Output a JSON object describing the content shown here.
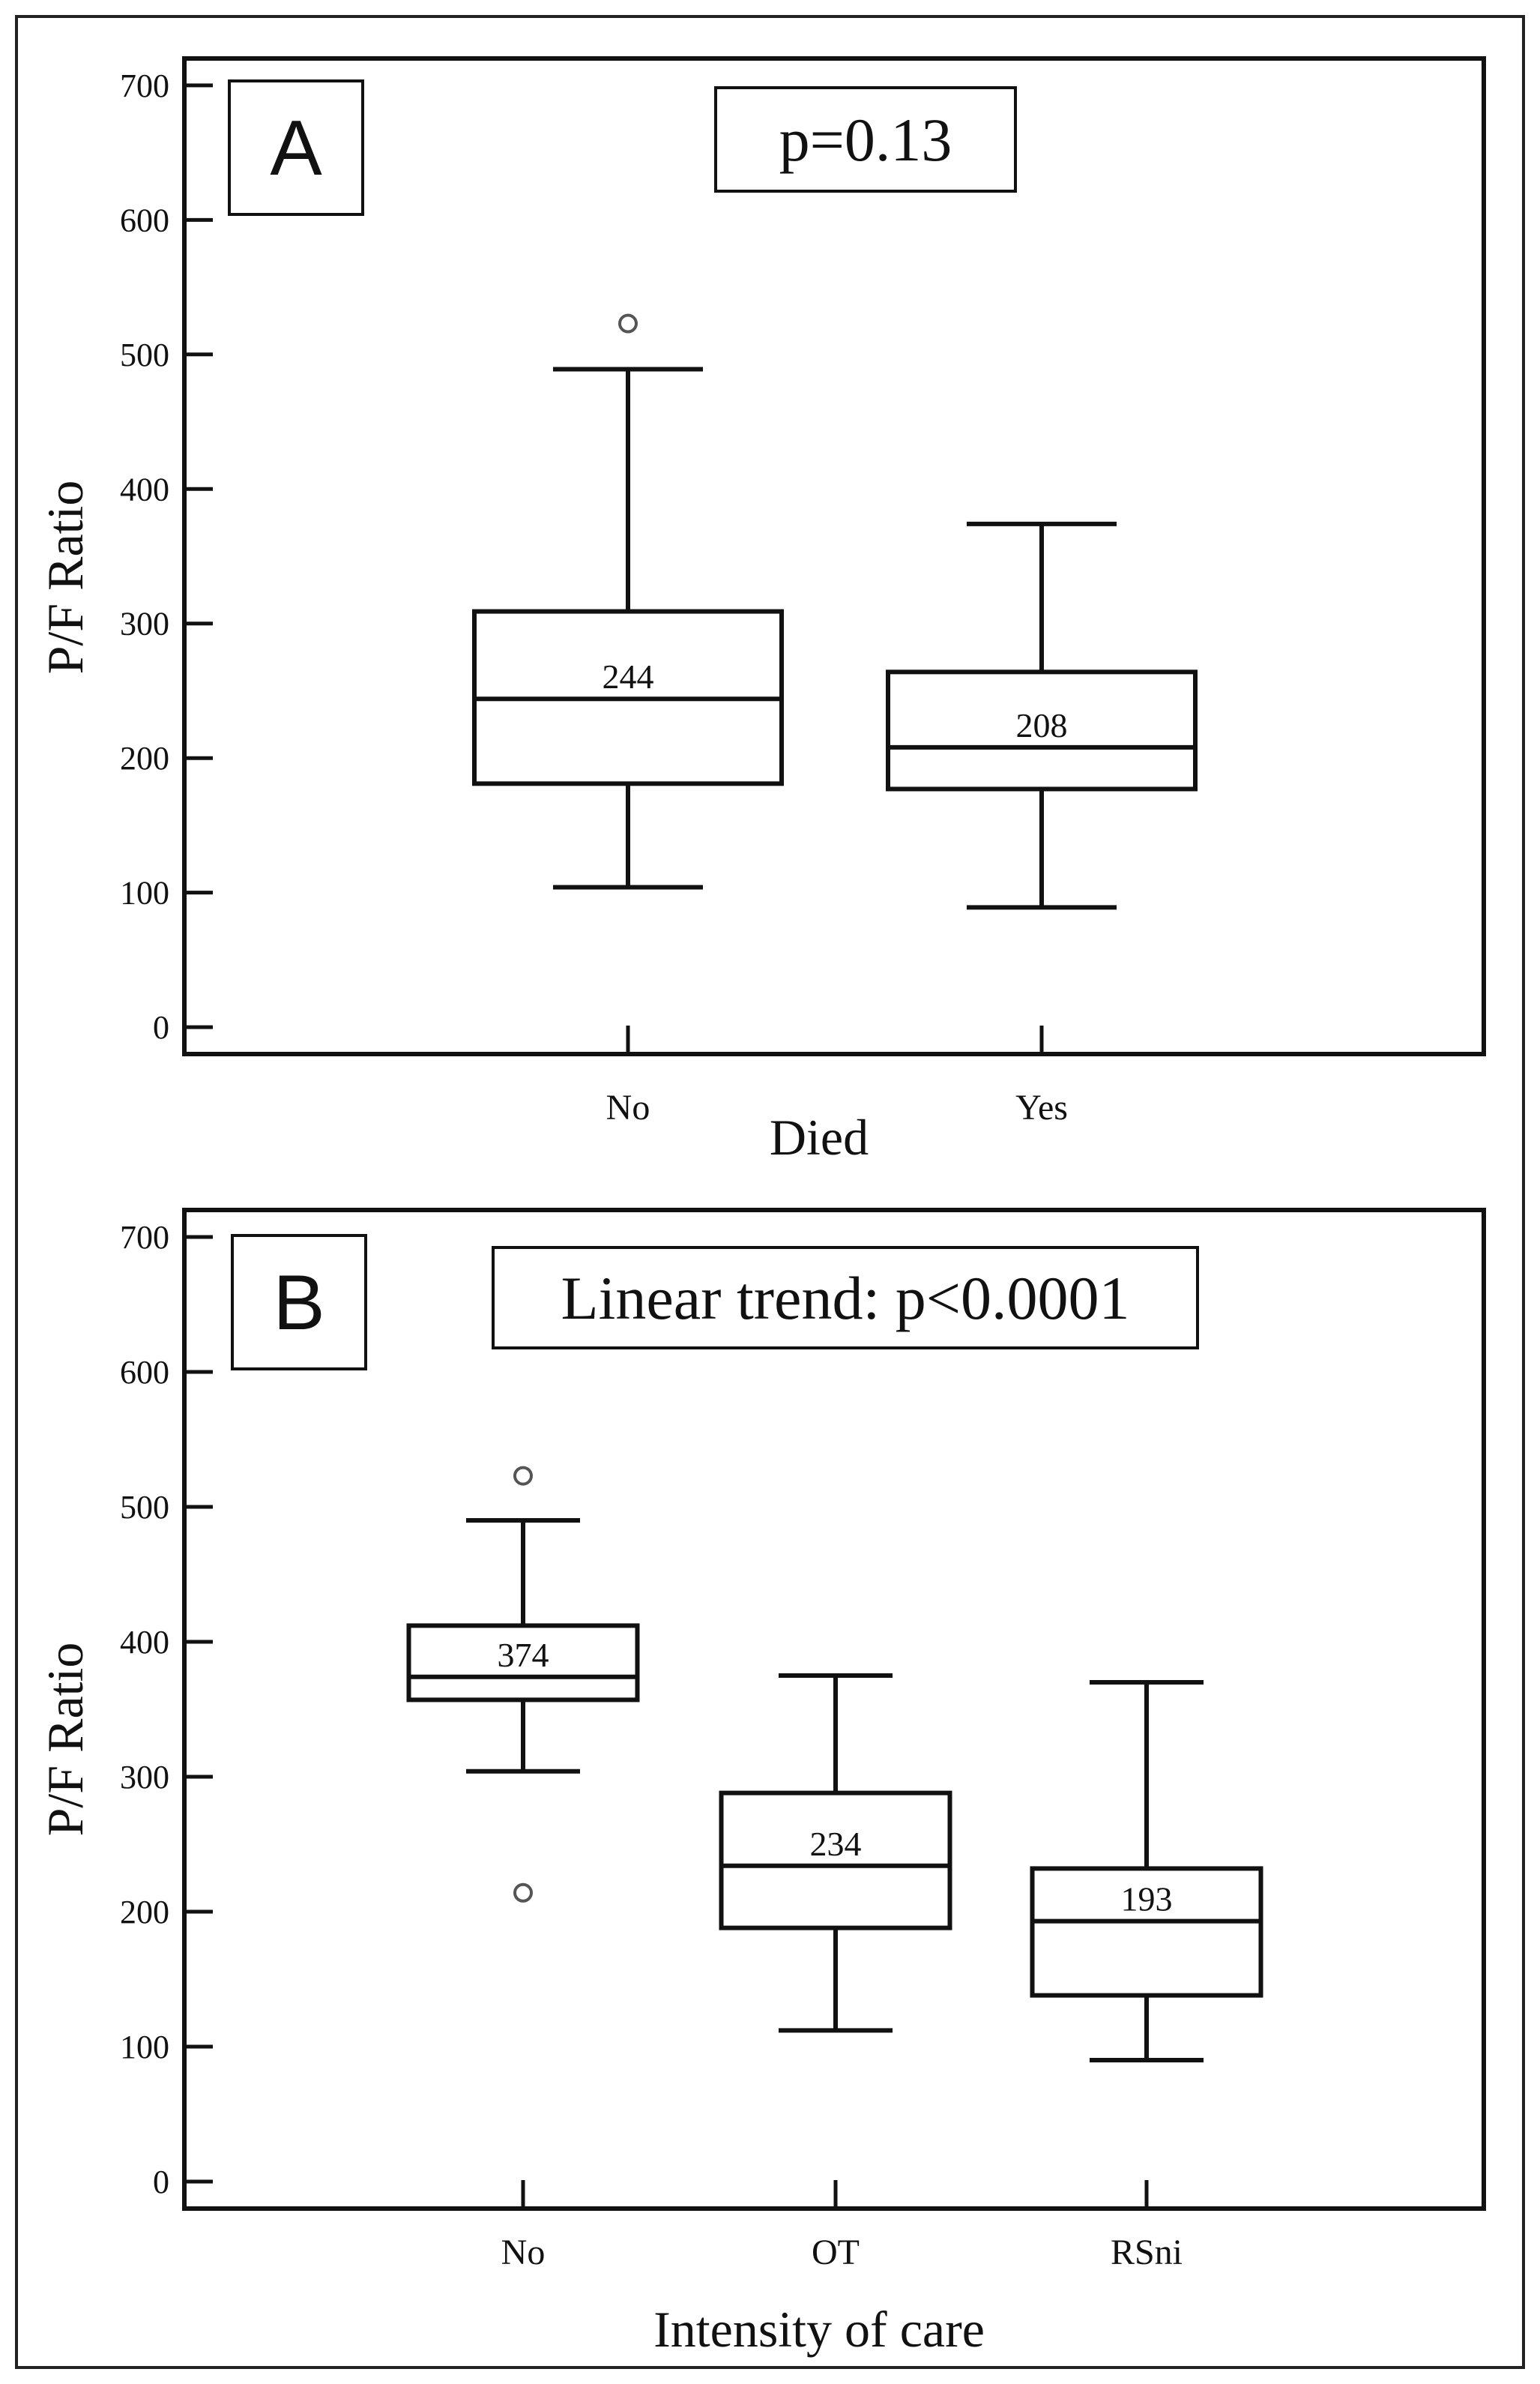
{
  "chart_data": [
    {
      "type": "box",
      "panel_label": "A",
      "stat_annotation": "p=0.13",
      "ylabel": "P/F Ratio",
      "xlabel": "Died",
      "ylim": [
        -20,
        720
      ],
      "yticks": [
        0,
        100,
        200,
        300,
        400,
        500,
        600,
        700
      ],
      "groups": [
        {
          "category": "No",
          "whisker_low": 104,
          "q1": 181,
          "median": 244,
          "q3": 309,
          "whisker_high": 489,
          "outliers": [
            523
          ],
          "median_label": "244"
        },
        {
          "category": "Yes",
          "whisker_low": 89,
          "q1": 177,
          "median": 208,
          "q3": 264,
          "whisker_high": 374,
          "outliers": [],
          "median_label": "208"
        }
      ]
    },
    {
      "type": "box",
      "panel_label": "B",
      "stat_annotation": "Linear trend: p<0.0001",
      "ylabel": "P/F Ratio",
      "xlabel": "Intensity of care",
      "ylim": [
        -20,
        720
      ],
      "yticks": [
        0,
        100,
        200,
        300,
        400,
        500,
        600,
        700
      ],
      "groups": [
        {
          "category": "No",
          "whisker_low": 304,
          "q1": 357,
          "median": 374,
          "q3": 412,
          "whisker_high": 490,
          "outliers": [
            523,
            214
          ],
          "median_label": "374"
        },
        {
          "category": "OT",
          "whisker_low": 112,
          "q1": 188,
          "median": 234,
          "q3": 288,
          "whisker_high": 375,
          "outliers": [],
          "median_label": "234"
        },
        {
          "category": "RSni",
          "whisker_low": 90,
          "q1": 138,
          "median": 193,
          "q3": 232,
          "whisker_high": 370,
          "outliers": [],
          "median_label": "193"
        }
      ]
    }
  ]
}
